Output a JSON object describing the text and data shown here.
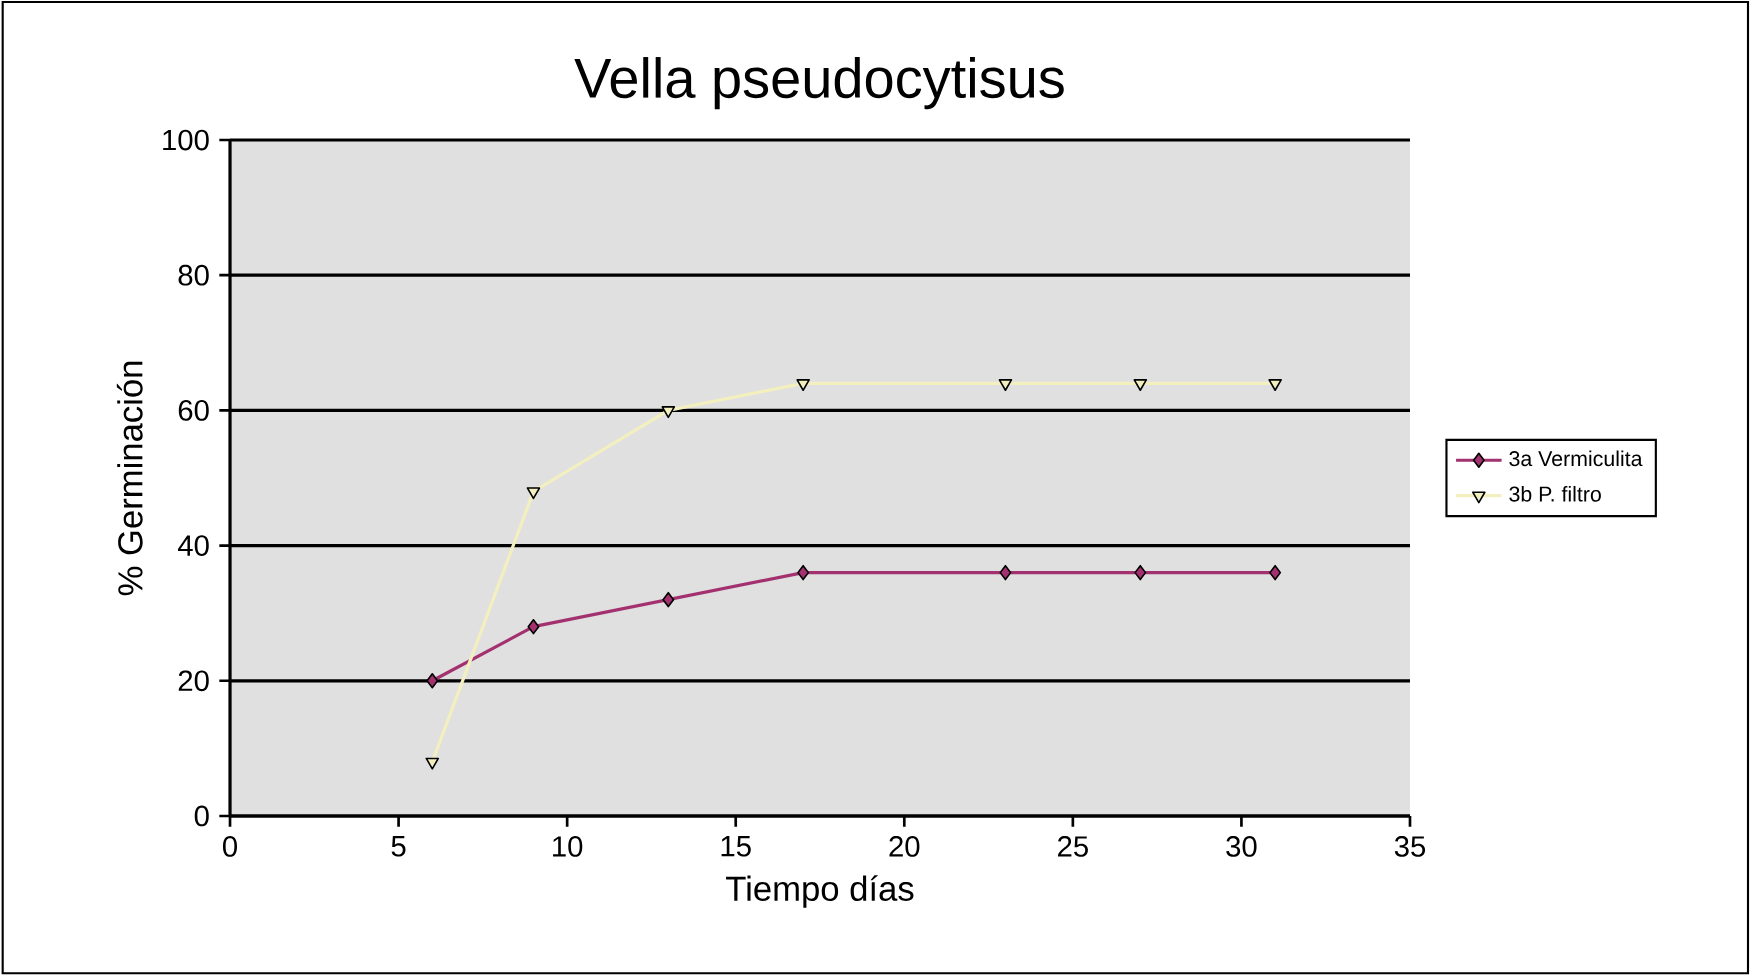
{
  "chart_data": {
    "type": "line",
    "title": "Vella pseudocytisus",
    "xlabel": "Tiempo días",
    "ylabel": "%  Germinación",
    "x": [
      6,
      9,
      13,
      17,
      23,
      27,
      31
    ],
    "series": [
      {
        "name": "3a Vermiculita",
        "color": "#a3316f",
        "marker": "diamond",
        "values": [
          20,
          28,
          32,
          36,
          36,
          36,
          36
        ]
      },
      {
        "name": "3b P. filtro",
        "color": "#f3efbf",
        "marker": "triangle",
        "values": [
          8,
          48,
          60,
          64,
          64,
          64,
          64
        ]
      }
    ],
    "xlim": [
      0,
      35
    ],
    "xticks": [
      0,
      5,
      10,
      15,
      20,
      25,
      30,
      35
    ],
    "ylim": [
      0,
      100
    ],
    "yticks": [
      0,
      20,
      40,
      60,
      80,
      100
    ],
    "grid": "y",
    "legend": "right",
    "line_style": "solid"
  }
}
